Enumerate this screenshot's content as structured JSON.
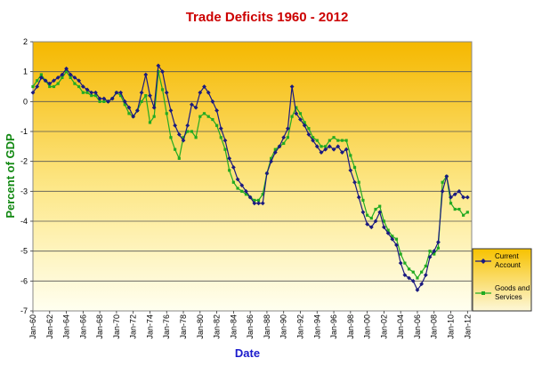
{
  "chart_data": {
    "type": "line",
    "title": "Trade Deficits 1960 - 2012",
    "xlabel": "Date",
    "ylabel": "Percent of GDP",
    "ylim": [
      -7,
      2
    ],
    "yticks": [
      "2",
      "1",
      "0",
      "-1",
      "-2",
      "-3",
      "-4",
      "-5",
      "-6",
      "-7"
    ],
    "xlim": [
      1960,
      2012.5
    ],
    "xticks": [
      "Jan-60",
      "Jan-62",
      "Jan-64",
      "Jan-66",
      "Jan-68",
      "Jan-70",
      "Jan-72",
      "Jan-74",
      "Jan-76",
      "Jan-78",
      "Jan-80",
      "Jan-82",
      "Jan-84",
      "Jan-86",
      "Jan-88",
      "Jan-90",
      "Jan-92",
      "Jan-94",
      "Jan-96",
      "Jan-98",
      "Jan-00",
      "Jan-02",
      "Jan-04",
      "Jan-06",
      "Jan-08",
      "Jan-10",
      "Jan-12"
    ],
    "grid": true,
    "legend_position": "right",
    "colors": {
      "title": "#cc0000",
      "xlabel": "#1a1acc",
      "ylabel": "#118811",
      "current_account": "#1a1a80",
      "goods_services": "#22aa22",
      "plot_top": "#f5b800",
      "plot_bottom": "#fffff0",
      "legend_top": "#f7c200",
      "legend_bottom": "#fdf7d8"
    },
    "series": [
      {
        "name": "Current Account",
        "marker": "diamond",
        "x": [
          1960,
          1960.5,
          1961,
          1961.5,
          1962,
          1962.5,
          1963,
          1963.5,
          1964,
          1964.5,
          1965,
          1965.5,
          1966,
          1966.5,
          1967,
          1967.5,
          1968,
          1968.5,
          1969,
          1969.5,
          1970,
          1970.5,
          1971,
          1971.5,
          1972,
          1972.5,
          1973,
          1973.5,
          1974,
          1974.5,
          1975,
          1975.5,
          1976,
          1976.5,
          1977,
          1977.5,
          1978,
          1978.5,
          1979,
          1979.5,
          1980,
          1980.5,
          1981,
          1981.5,
          1982,
          1982.5,
          1983,
          1983.5,
          1984,
          1984.5,
          1985,
          1985.5,
          1986,
          1986.5,
          1987,
          1987.5,
          1988,
          1988.5,
          1989,
          1989.5,
          1990,
          1990.5,
          1991,
          1991.5,
          1992,
          1992.5,
          1993,
          1993.5,
          1994,
          1994.5,
          1995,
          1995.5,
          1996,
          1996.5,
          1997,
          1997.5,
          1998,
          1998.5,
          1999,
          1999.5,
          2000,
          2000.5,
          2001,
          2001.5,
          2002,
          2002.5,
          2003,
          2003.5,
          2004,
          2004.5,
          2005,
          2005.5,
          2006,
          2006.5,
          2007,
          2007.5,
          2008,
          2008.5,
          2009,
          2009.5,
          2010,
          2010.5,
          2011,
          2011.5,
          2012
        ],
        "values": [
          0.3,
          0.5,
          0.8,
          0.7,
          0.6,
          0.7,
          0.8,
          0.9,
          1.1,
          0.9,
          0.8,
          0.7,
          0.5,
          0.4,
          0.3,
          0.3,
          0.1,
          0.1,
          0.0,
          0.1,
          0.3,
          0.3,
          0.0,
          -0.2,
          -0.5,
          -0.3,
          0.3,
          0.9,
          0.2,
          -0.2,
          1.2,
          1.0,
          0.3,
          -0.3,
          -0.8,
          -1.1,
          -1.3,
          -0.8,
          -0.1,
          -0.2,
          0.3,
          0.5,
          0.3,
          0.0,
          -0.3,
          -0.9,
          -1.3,
          -1.9,
          -2.2,
          -2.6,
          -2.8,
          -3.0,
          -3.2,
          -3.4,
          -3.4,
          -3.4,
          -2.4,
          -2.0,
          -1.7,
          -1.5,
          -1.2,
          -0.9,
          0.5,
          -0.4,
          -0.6,
          -0.8,
          -1.1,
          -1.3,
          -1.5,
          -1.7,
          -1.6,
          -1.5,
          -1.6,
          -1.5,
          -1.7,
          -1.6,
          -2.3,
          -2.7,
          -3.2,
          -3.7,
          -4.1,
          -4.2,
          -4.0,
          -3.7,
          -4.2,
          -4.4,
          -4.6,
          -4.8,
          -5.4,
          -5.8,
          -5.9,
          -6.0,
          -6.3,
          -6.1,
          -5.8,
          -5.2,
          -5.0,
          -4.7,
          -3.0,
          -2.5,
          -3.2,
          -3.1,
          -3.0,
          -3.2,
          -3.2
        ],
        "color": "#1a1a80"
      },
      {
        "name": "Goods and Services",
        "marker": "square",
        "x": [
          1960,
          1960.5,
          1961,
          1961.5,
          1962,
          1962.5,
          1963,
          1963.5,
          1964,
          1964.5,
          1965,
          1965.5,
          1966,
          1966.5,
          1967,
          1967.5,
          1968,
          1968.5,
          1969,
          1969.5,
          1970,
          1970.5,
          1971,
          1971.5,
          1972,
          1972.5,
          1973,
          1973.5,
          1974,
          1974.5,
          1975,
          1975.5,
          1976,
          1976.5,
          1977,
          1977.5,
          1978,
          1978.5,
          1979,
          1979.5,
          1980,
          1980.5,
          1981,
          1981.5,
          1982,
          1982.5,
          1983,
          1983.5,
          1984,
          1984.5,
          1985,
          1985.5,
          1986,
          1986.5,
          1987,
          1987.5,
          1988,
          1988.5,
          1989,
          1989.5,
          1990,
          1990.5,
          1991,
          1991.5,
          1992,
          1992.5,
          1993,
          1993.5,
          1994,
          1994.5,
          1995,
          1995.5,
          1996,
          1996.5,
          1997,
          1997.5,
          1998,
          1998.5,
          1999,
          1999.5,
          2000,
          2000.5,
          2001,
          2001.5,
          2002,
          2002.5,
          2003,
          2003.5,
          2004,
          2004.5,
          2005,
          2005.5,
          2006,
          2006.5,
          2007,
          2007.5,
          2008,
          2008.5,
          2009,
          2009.5,
          2010,
          2010.5,
          2011,
          2011.5,
          2012
        ],
        "values": [
          0.5,
          0.7,
          0.9,
          0.7,
          0.5,
          0.5,
          0.6,
          0.8,
          1.0,
          0.8,
          0.6,
          0.5,
          0.3,
          0.3,
          0.2,
          0.2,
          0.0,
          0.0,
          0.0,
          0.1,
          0.3,
          0.2,
          -0.1,
          -0.4,
          -0.5,
          -0.3,
          0.0,
          0.2,
          -0.7,
          -0.5,
          1.0,
          0.4,
          -0.4,
          -1.2,
          -1.6,
          -1.9,
          -1.2,
          -1.0,
          -1.0,
          -1.2,
          -0.5,
          -0.4,
          -0.5,
          -0.6,
          -0.8,
          -1.2,
          -1.6,
          -2.3,
          -2.7,
          -2.9,
          -3.0,
          -3.1,
          -3.2,
          -3.3,
          -3.3,
          -3.1,
          -2.4,
          -1.9,
          -1.6,
          -1.5,
          -1.4,
          -1.2,
          -0.5,
          -0.2,
          -0.4,
          -0.7,
          -0.9,
          -1.2,
          -1.3,
          -1.5,
          -1.5,
          -1.3,
          -1.2,
          -1.3,
          -1.3,
          -1.3,
          -1.8,
          -2.2,
          -2.7,
          -3.3,
          -3.8,
          -3.9,
          -3.6,
          -3.5,
          -4.0,
          -4.3,
          -4.5,
          -4.6,
          -5.1,
          -5.4,
          -5.6,
          -5.7,
          -5.9,
          -5.7,
          -5.5,
          -5.0,
          -5.1,
          -4.9,
          -2.7,
          -2.5,
          -3.4,
          -3.6,
          -3.6,
          -3.8,
          -3.7
        ],
        "color": "#22aa22"
      }
    ]
  }
}
